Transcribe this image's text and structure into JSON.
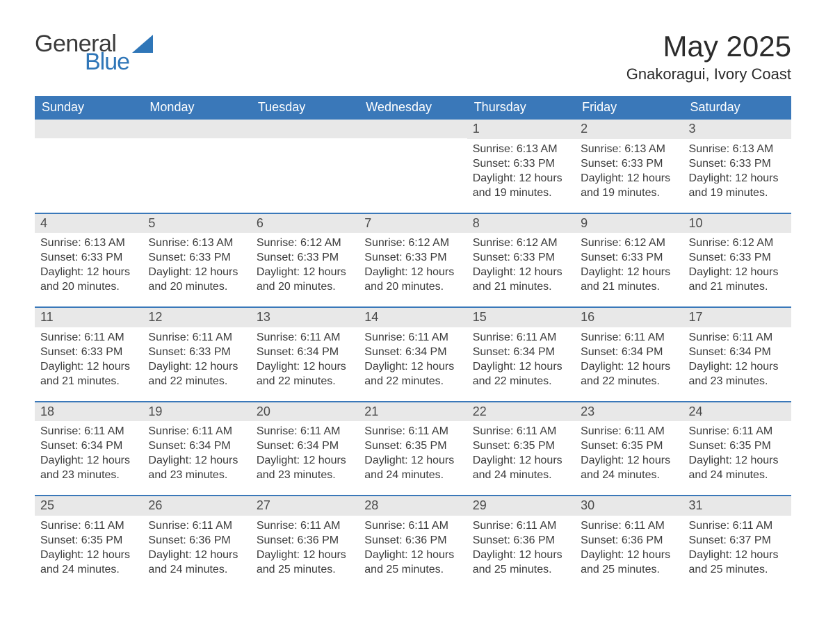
{
  "logo": {
    "text1": "General",
    "text2": "Blue",
    "icon_color": "#2f76b8"
  },
  "title": "May 2025",
  "location": "Gnakoragui, Ivory Coast",
  "colors": {
    "header_bg": "#3a78b9",
    "header_text": "#ffffff",
    "daynum_bg": "#e8e8e8",
    "daynum_text": "#4b4b4b",
    "body_text": "#3b3b3b",
    "row_divider": "#3a78b9",
    "page_bg": "#ffffff"
  },
  "typography": {
    "title_fontsize": 42,
    "location_fontsize": 22,
    "weekday_fontsize": 18,
    "daynum_fontsize": 18,
    "body_fontsize": 16
  },
  "layout": {
    "columns": 7,
    "rows": 5,
    "start_weekday_index": 4
  },
  "weekdays": [
    "Sunday",
    "Monday",
    "Tuesday",
    "Wednesday",
    "Thursday",
    "Friday",
    "Saturday"
  ],
  "weeks": [
    [
      null,
      null,
      null,
      null,
      {
        "d": "1",
        "sunrise": "6:13 AM",
        "sunset": "6:33 PM",
        "daylight": "12 hours and 19 minutes."
      },
      {
        "d": "2",
        "sunrise": "6:13 AM",
        "sunset": "6:33 PM",
        "daylight": "12 hours and 19 minutes."
      },
      {
        "d": "3",
        "sunrise": "6:13 AM",
        "sunset": "6:33 PM",
        "daylight": "12 hours and 19 minutes."
      }
    ],
    [
      {
        "d": "4",
        "sunrise": "6:13 AM",
        "sunset": "6:33 PM",
        "daylight": "12 hours and 20 minutes."
      },
      {
        "d": "5",
        "sunrise": "6:13 AM",
        "sunset": "6:33 PM",
        "daylight": "12 hours and 20 minutes."
      },
      {
        "d": "6",
        "sunrise": "6:12 AM",
        "sunset": "6:33 PM",
        "daylight": "12 hours and 20 minutes."
      },
      {
        "d": "7",
        "sunrise": "6:12 AM",
        "sunset": "6:33 PM",
        "daylight": "12 hours and 20 minutes."
      },
      {
        "d": "8",
        "sunrise": "6:12 AM",
        "sunset": "6:33 PM",
        "daylight": "12 hours and 21 minutes."
      },
      {
        "d": "9",
        "sunrise": "6:12 AM",
        "sunset": "6:33 PM",
        "daylight": "12 hours and 21 minutes."
      },
      {
        "d": "10",
        "sunrise": "6:12 AM",
        "sunset": "6:33 PM",
        "daylight": "12 hours and 21 minutes."
      }
    ],
    [
      {
        "d": "11",
        "sunrise": "6:11 AM",
        "sunset": "6:33 PM",
        "daylight": "12 hours and 21 minutes."
      },
      {
        "d": "12",
        "sunrise": "6:11 AM",
        "sunset": "6:33 PM",
        "daylight": "12 hours and 22 minutes."
      },
      {
        "d": "13",
        "sunrise": "6:11 AM",
        "sunset": "6:34 PM",
        "daylight": "12 hours and 22 minutes."
      },
      {
        "d": "14",
        "sunrise": "6:11 AM",
        "sunset": "6:34 PM",
        "daylight": "12 hours and 22 minutes."
      },
      {
        "d": "15",
        "sunrise": "6:11 AM",
        "sunset": "6:34 PM",
        "daylight": "12 hours and 22 minutes."
      },
      {
        "d": "16",
        "sunrise": "6:11 AM",
        "sunset": "6:34 PM",
        "daylight": "12 hours and 22 minutes."
      },
      {
        "d": "17",
        "sunrise": "6:11 AM",
        "sunset": "6:34 PM",
        "daylight": "12 hours and 23 minutes."
      }
    ],
    [
      {
        "d": "18",
        "sunrise": "6:11 AM",
        "sunset": "6:34 PM",
        "daylight": "12 hours and 23 minutes."
      },
      {
        "d": "19",
        "sunrise": "6:11 AM",
        "sunset": "6:34 PM",
        "daylight": "12 hours and 23 minutes."
      },
      {
        "d": "20",
        "sunrise": "6:11 AM",
        "sunset": "6:34 PM",
        "daylight": "12 hours and 23 minutes."
      },
      {
        "d": "21",
        "sunrise": "6:11 AM",
        "sunset": "6:35 PM",
        "daylight": "12 hours and 24 minutes."
      },
      {
        "d": "22",
        "sunrise": "6:11 AM",
        "sunset": "6:35 PM",
        "daylight": "12 hours and 24 minutes."
      },
      {
        "d": "23",
        "sunrise": "6:11 AM",
        "sunset": "6:35 PM",
        "daylight": "12 hours and 24 minutes."
      },
      {
        "d": "24",
        "sunrise": "6:11 AM",
        "sunset": "6:35 PM",
        "daylight": "12 hours and 24 minutes."
      }
    ],
    [
      {
        "d": "25",
        "sunrise": "6:11 AM",
        "sunset": "6:35 PM",
        "daylight": "12 hours and 24 minutes."
      },
      {
        "d": "26",
        "sunrise": "6:11 AM",
        "sunset": "6:36 PM",
        "daylight": "12 hours and 24 minutes."
      },
      {
        "d": "27",
        "sunrise": "6:11 AM",
        "sunset": "6:36 PM",
        "daylight": "12 hours and 25 minutes."
      },
      {
        "d": "28",
        "sunrise": "6:11 AM",
        "sunset": "6:36 PM",
        "daylight": "12 hours and 25 minutes."
      },
      {
        "d": "29",
        "sunrise": "6:11 AM",
        "sunset": "6:36 PM",
        "daylight": "12 hours and 25 minutes."
      },
      {
        "d": "30",
        "sunrise": "6:11 AM",
        "sunset": "6:36 PM",
        "daylight": "12 hours and 25 minutes."
      },
      {
        "d": "31",
        "sunrise": "6:11 AM",
        "sunset": "6:37 PM",
        "daylight": "12 hours and 25 minutes."
      }
    ]
  ],
  "labels": {
    "sunrise": "Sunrise:",
    "sunset": "Sunset:",
    "daylight": "Daylight:"
  }
}
